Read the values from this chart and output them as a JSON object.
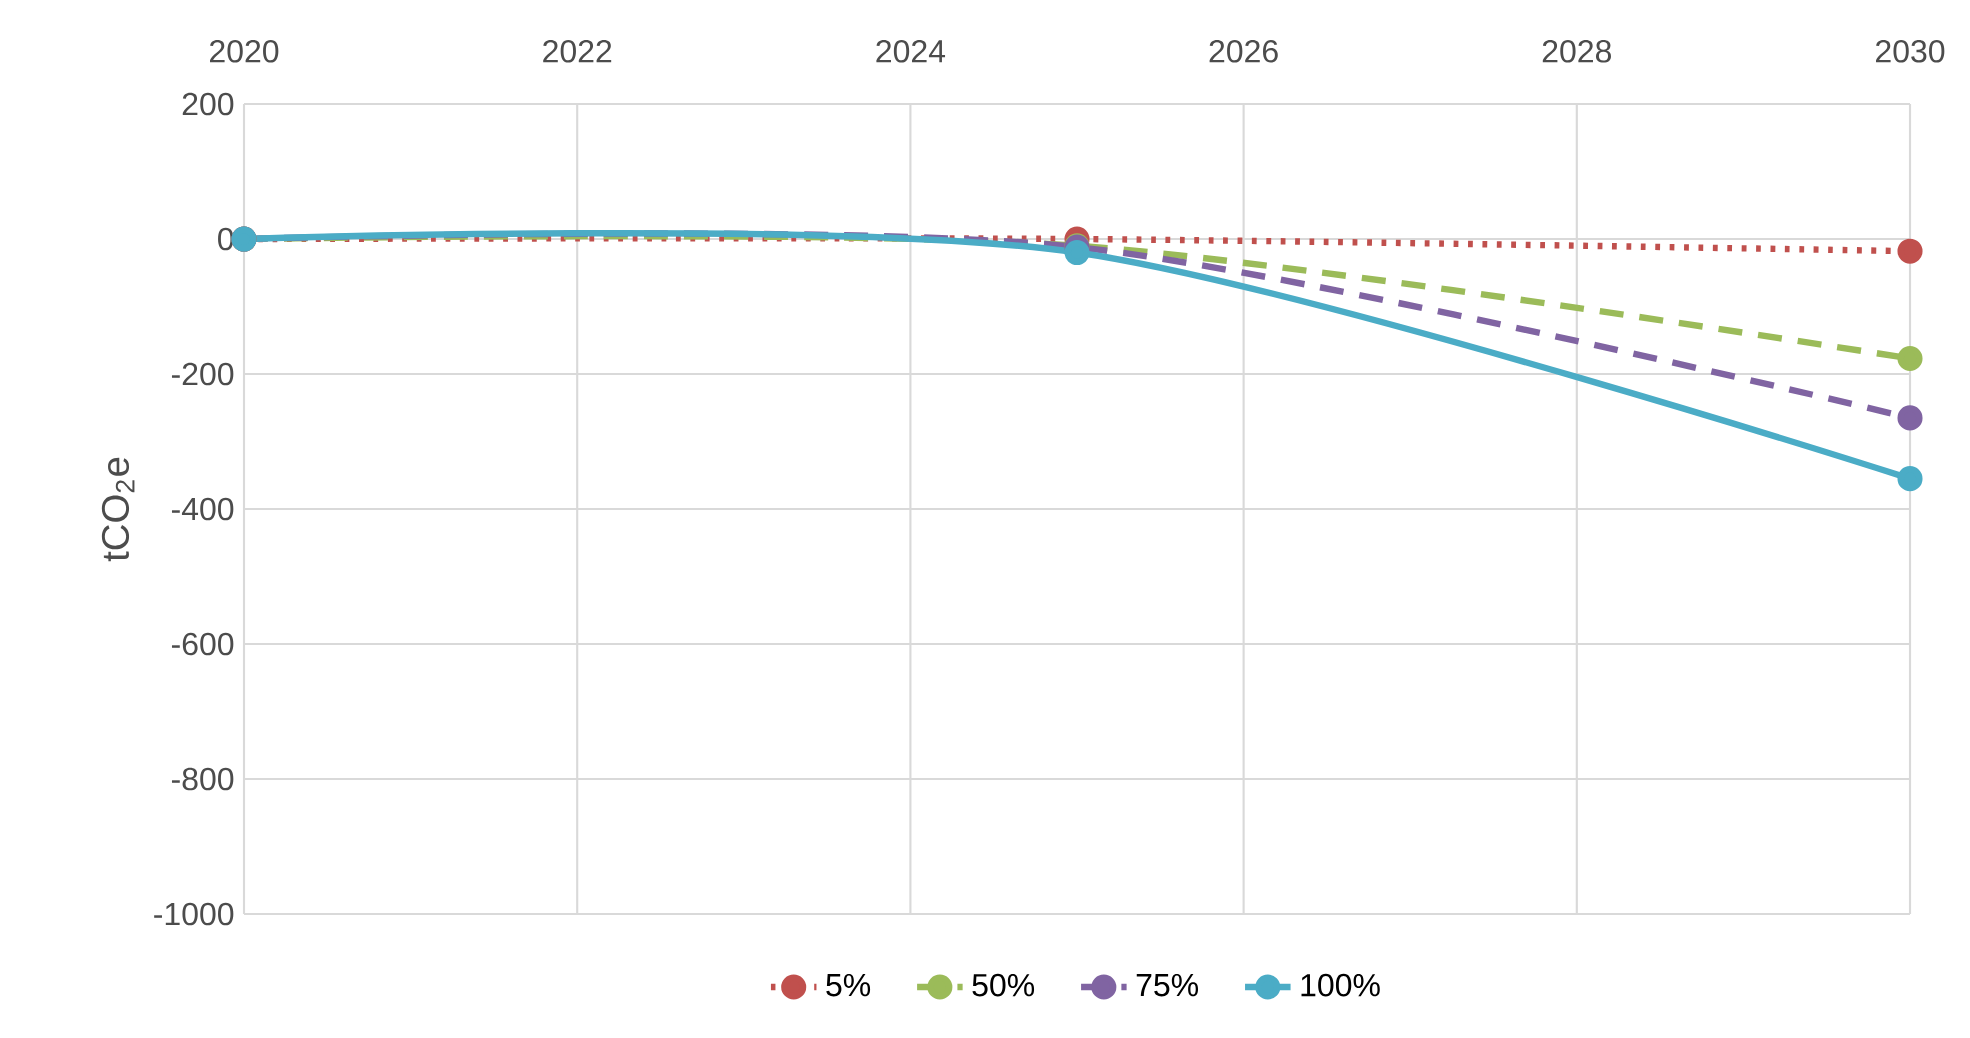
{
  "chart_data": {
    "type": "line",
    "ylabel": "tCO$_{2}$e",
    "x": [
      2020,
      2025,
      2030
    ],
    "xlim": [
      2020,
      2030
    ],
    "xticks": [
      2020,
      2022,
      2024,
      2026,
      2028,
      2030
    ],
    "ylim": [
      -1000,
      200
    ],
    "yticks": [
      -1000,
      -800,
      -600,
      -400,
      -200,
      0,
      200
    ],
    "grid": true,
    "legend": "bottom",
    "marker": "circle",
    "series": [
      {
        "name": "5%",
        "color": "#c0504d",
        "line_style": "dotted",
        "values": [
          0,
          0,
          -18
        ]
      },
      {
        "name": "50%",
        "color": "#9bbb59",
        "line_style": "dashed",
        "values": [
          0,
          -10,
          -177
        ]
      },
      {
        "name": "75%",
        "color": "#8064a2",
        "line_style": "dashed",
        "values": [
          0,
          -12,
          -265
        ]
      },
      {
        "name": "100%",
        "color": "#4bacc6",
        "line_style": "solid",
        "values": [
          0,
          -20,
          -355
        ]
      }
    ]
  }
}
